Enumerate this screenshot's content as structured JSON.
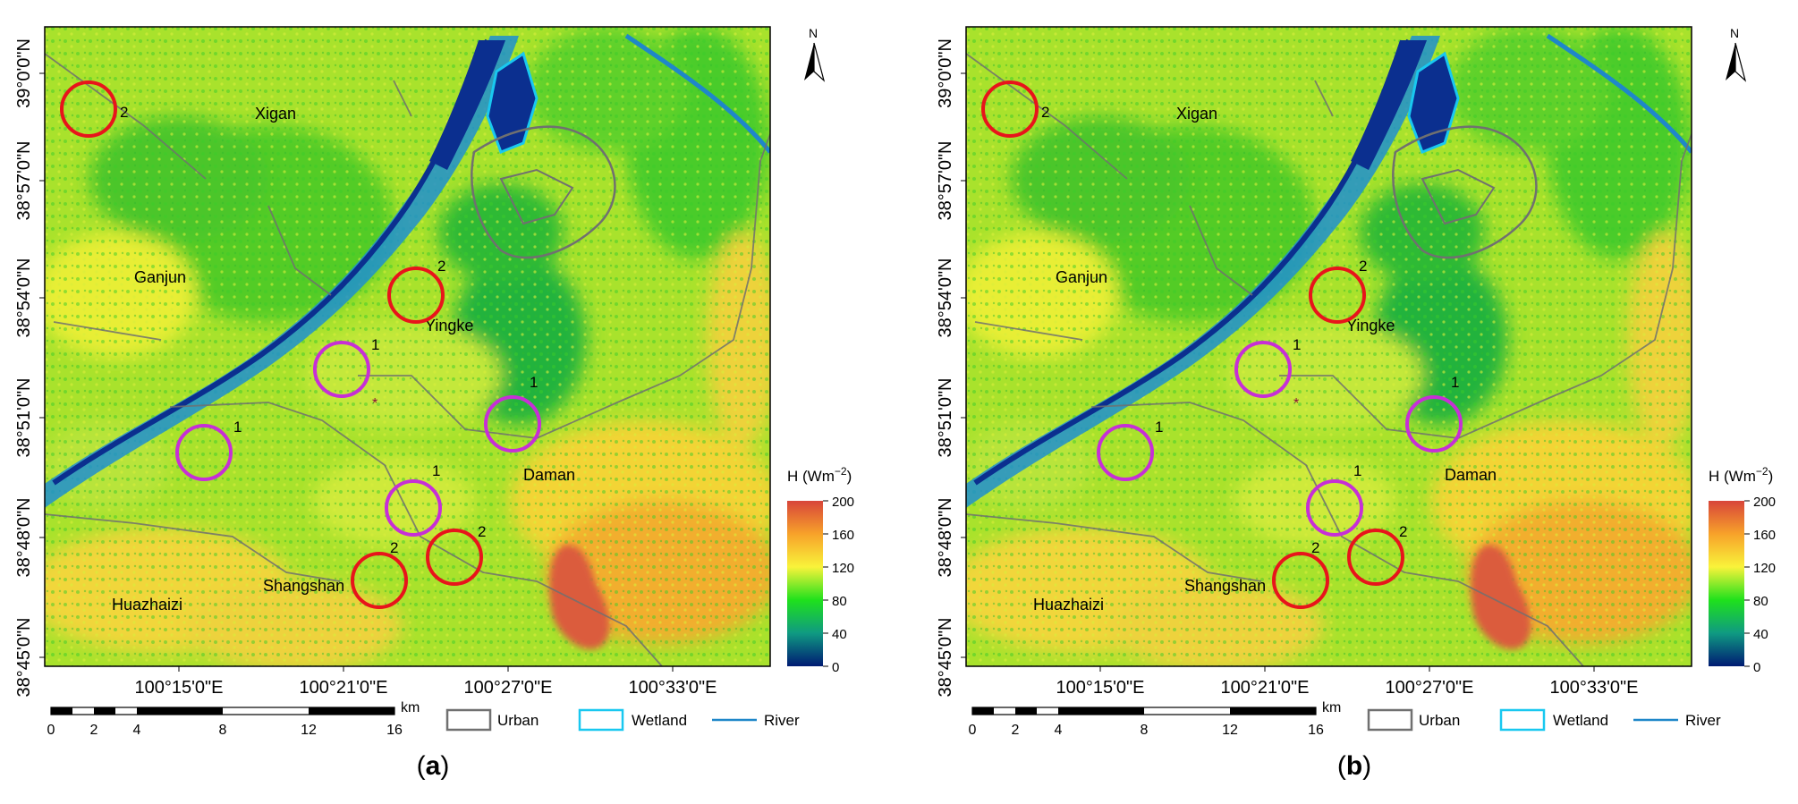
{
  "panels": [
    {
      "label": "(a)",
      "label_letter": "a"
    },
    {
      "label": "(b)",
      "label_letter": "b"
    }
  ],
  "north": "N",
  "lat_ticks": [
    "39°0'0\"N",
    "38°57'0\"N",
    "38°54'0\"N",
    "38°51'0\"N",
    "38°48'0\"N",
    "38°45'0\"N"
  ],
  "lon_ticks": [
    "100°15'0\"E",
    "100°21'0\"E",
    "100°27'0\"E",
    "100°33'0\"E"
  ],
  "places": [
    "Xigan",
    "Ganjun",
    "Yingke",
    "Daman",
    "Shangshan",
    "Huazhaizi"
  ],
  "sites": [
    {
      "label": "2",
      "type": "red"
    },
    {
      "label": "2",
      "type": "red"
    },
    {
      "label": "1",
      "type": "magenta"
    },
    {
      "label": "1",
      "type": "magenta"
    },
    {
      "label": "1",
      "type": "magenta"
    },
    {
      "label": "1",
      "type": "magenta"
    },
    {
      "label": "2",
      "type": "red"
    },
    {
      "label": "2",
      "type": "red"
    }
  ],
  "site_colors": {
    "red": "#e8141b",
    "magenta": "#c72fd6"
  },
  "colorbar": {
    "title_prefix": "H (Wm",
    "title_exp": "−2",
    "title_suffix": ")",
    "ticks": [
      "200",
      "160",
      "120",
      "80",
      "40",
      "0"
    ]
  },
  "scalebar": {
    "unit": "km",
    "ticks": [
      "0",
      "2",
      "4",
      "8",
      "12",
      "16"
    ]
  },
  "legend": [
    {
      "label": "Urban",
      "color": "#707070"
    },
    {
      "label": "Wetland",
      "color": "#19c8f0"
    },
    {
      "label": "River",
      "color": "#1f87c9"
    }
  ]
}
